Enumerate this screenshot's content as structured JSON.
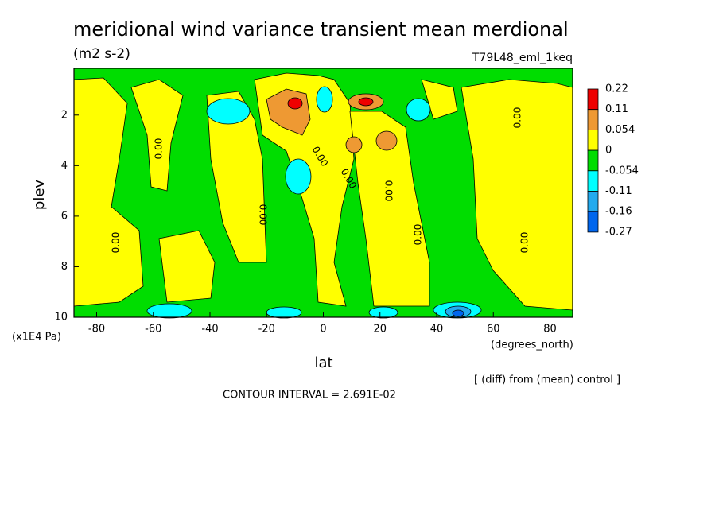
{
  "chart_data": {
    "type": "contour",
    "title": "meridional wind variance transient mean merdional",
    "subtitle": "(m2 s-2)",
    "run_label": "T79L48_eml_1keq",
    "x_label": "lat",
    "x_unit": "(degrees_north)",
    "y_label": "plev",
    "y_unit": "(x1E4 Pa)",
    "note": "[ (diff) from (mean) control ]",
    "contour_interval": "CONTOUR INTERVAL = 2.691E-02",
    "xlim": [
      -88,
      88
    ],
    "xticks": [
      -80,
      -60,
      -40,
      -20,
      0,
      20,
      40,
      60,
      80
    ],
    "ylim": [
      10,
      0.15
    ],
    "yticks": [
      2,
      4,
      6,
      8,
      10
    ],
    "colorbar": {
      "levels": [
        0.22,
        0.11,
        0.054,
        0,
        -0.054,
        -0.11,
        -0.16,
        -0.27
      ],
      "colors": [
        "#ee0000",
        "#ee9933",
        "#ffff00",
        "#00dd00",
        "#00ffff",
        "#22aaee",
        "#0066ee"
      ]
    },
    "contour_labels": [
      "0.00",
      "0.00",
      "0.00",
      "0.00",
      "0.00",
      "0.00",
      "0.00",
      "0.00",
      "0.00"
    ]
  }
}
